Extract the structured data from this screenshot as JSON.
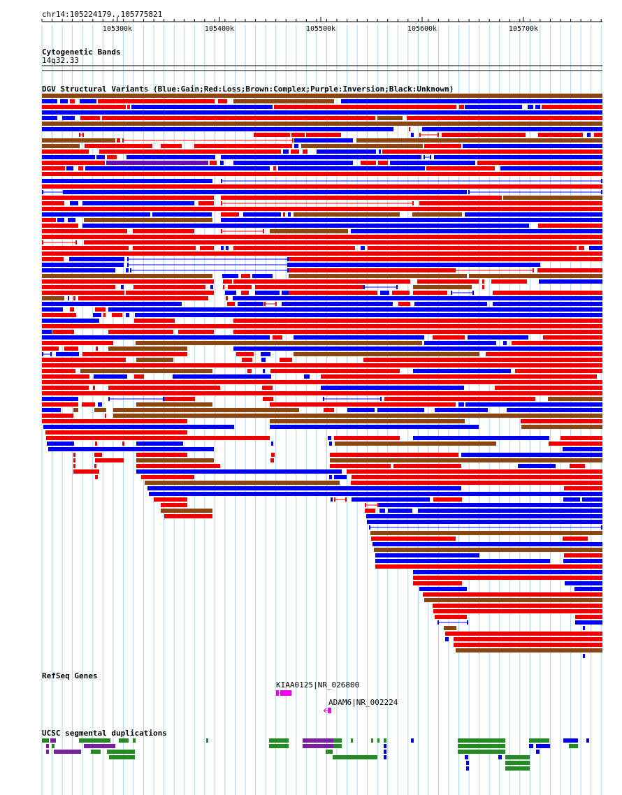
{
  "position": "chr14:105224179..105775821",
  "ruler": {
    "ticks": [
      "105300k",
      "105400k",
      "105500k",
      "105600k",
      "105700k"
    ]
  },
  "tracks": {
    "cytoband": {
      "title": "Cytogenetic Bands",
      "band": "14q32.33"
    },
    "dgv": {
      "title": "DGV Structural Variants (Blue:Gain;Red:Loss;Brown:Complex;Purple:Inversion;Black:Unknown)"
    },
    "refseq": {
      "title": "RefSeq Genes",
      "genes": [
        "KIAA0125|NR_026800",
        "ADAM6|NR_002224"
      ]
    },
    "segdup": {
      "title": "UCSC segmental duplications"
    }
  },
  "colors": {
    "gain": "#0000ee",
    "loss": "#ee0000",
    "complex": "#8b4513",
    "inversion": "#6a0dad",
    "gene": "#ee00ee",
    "segdup_green": "#228b22",
    "segdup_purple": "#7b1fa2",
    "gridline": "#aad4ee"
  }
}
